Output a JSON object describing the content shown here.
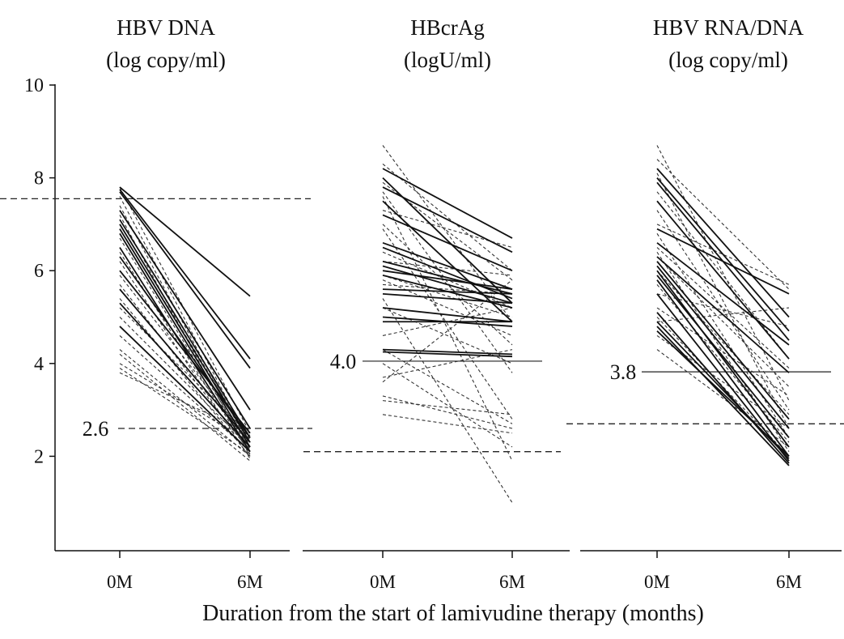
{
  "chart_data": {
    "type": "line",
    "xlabel": "Duration from the start of lamivudine therapy (months)",
    "ylim": [
      0,
      10
    ],
    "yticks": [
      2,
      4,
      6,
      8,
      10
    ],
    "categories": [
      "0M",
      "6M"
    ],
    "panels": [
      {
        "title_line1": "HBV DNA",
        "title_line2": "(log copy/ml)",
        "upper_dashed": 7.55,
        "annotation": {
          "label": "2.6",
          "value": 2.6,
          "style": "dashed"
        },
        "solid": [
          [
            7.8,
            5.45
          ],
          [
            7.75,
            4.1
          ],
          [
            7.7,
            3.9
          ],
          [
            7.3,
            3.0
          ],
          [
            7.1,
            2.6
          ],
          [
            7.0,
            2.4
          ],
          [
            6.9,
            2.3
          ],
          [
            6.8,
            2.2
          ],
          [
            6.5,
            2.1
          ],
          [
            6.3,
            2.4
          ],
          [
            6.0,
            2.5
          ],
          [
            5.6,
            2.3
          ],
          [
            5.3,
            2.2
          ],
          [
            4.8,
            2.1
          ]
        ],
        "dashed": [
          [
            7.8,
            2.5
          ],
          [
            7.6,
            2.3
          ],
          [
            7.4,
            2.2
          ],
          [
            7.2,
            2.0
          ],
          [
            6.9,
            2.35
          ],
          [
            6.7,
            2.15
          ],
          [
            6.4,
            2.05
          ],
          [
            6.2,
            1.95
          ],
          [
            5.9,
            2.3
          ],
          [
            5.7,
            2.1
          ],
          [
            5.4,
            2.0
          ],
          [
            5.2,
            2.45
          ],
          [
            5.0,
            2.2
          ],
          [
            4.6,
            2.1
          ],
          [
            4.3,
            2.0
          ],
          [
            4.2,
            1.9
          ],
          [
            4.0,
            2.3
          ],
          [
            3.8,
            2.5
          ],
          [
            3.9,
            2.05
          ]
        ]
      },
      {
        "title_line1": "HBcrAg",
        "title_line2": "(logU/ml)",
        "lower_dashed": 2.1,
        "annotation": {
          "label": "4.0",
          "value": 4.05,
          "style": "solid"
        },
        "solid": [
          [
            8.2,
            6.7
          ],
          [
            8.0,
            5.3
          ],
          [
            7.8,
            6.4
          ],
          [
            7.5,
            4.9
          ],
          [
            7.2,
            6.0
          ],
          [
            6.6,
            5.6
          ],
          [
            6.5,
            5.4
          ],
          [
            6.2,
            5.5
          ],
          [
            6.1,
            5.3
          ],
          [
            6.0,
            5.6
          ],
          [
            5.9,
            5.2
          ],
          [
            5.6,
            5.5
          ],
          [
            5.5,
            5.3
          ],
          [
            5.2,
            4.9
          ],
          [
            5.0,
            4.8
          ],
          [
            4.9,
            4.9
          ],
          [
            4.3,
            4.2
          ],
          [
            4.25,
            4.15
          ]
        ],
        "dashed": [
          [
            8.7,
            4.9
          ],
          [
            8.3,
            6.0
          ],
          [
            7.9,
            5.8
          ],
          [
            7.7,
            3.8
          ],
          [
            7.6,
            1.9
          ],
          [
            7.3,
            6.5
          ],
          [
            7.0,
            4.4
          ],
          [
            6.9,
            2.8
          ],
          [
            6.4,
            5.2
          ],
          [
            6.2,
            5.9
          ],
          [
            5.9,
            5.0
          ],
          [
            5.8,
            4.6
          ],
          [
            5.7,
            5.5
          ],
          [
            5.4,
            1.0
          ],
          [
            5.2,
            4.0
          ],
          [
            4.6,
            5.2
          ],
          [
            4.3,
            2.7
          ],
          [
            4.0,
            2.2
          ],
          [
            3.7,
            4.3
          ],
          [
            3.6,
            5.8
          ],
          [
            3.3,
            2.6
          ],
          [
            3.2,
            2.9
          ],
          [
            2.9,
            2.5
          ]
        ]
      },
      {
        "title_line1": "HBV RNA/DNA",
        "title_line2": "(log copy/ml)",
        "lower_dashed": 2.7,
        "annotation": {
          "label": "3.8",
          "value": 3.82,
          "style": "solid"
        },
        "solid": [
          [
            8.2,
            5.0
          ],
          [
            8.0,
            4.7
          ],
          [
            7.9,
            4.5
          ],
          [
            7.5,
            4.1
          ],
          [
            6.9,
            5.5
          ],
          [
            6.6,
            4.4
          ],
          [
            6.3,
            3.8
          ],
          [
            6.2,
            2.8
          ],
          [
            6.1,
            2.6
          ],
          [
            6.0,
            2.2
          ],
          [
            5.9,
            2.4
          ],
          [
            5.8,
            2.0
          ],
          [
            5.5,
            1.9
          ],
          [
            5.1,
            1.85
          ],
          [
            4.9,
            1.95
          ],
          [
            4.8,
            1.8
          ],
          [
            4.7,
            2.0
          ]
        ],
        "dashed": [
          [
            8.7,
            3.2
          ],
          [
            8.4,
            5.6
          ],
          [
            8.1,
            2.6
          ],
          [
            7.7,
            4.1
          ],
          [
            7.3,
            3.0
          ],
          [
            7.0,
            5.7
          ],
          [
            6.8,
            2.4
          ],
          [
            6.5,
            3.9
          ],
          [
            6.4,
            2.1
          ],
          [
            6.3,
            3.5
          ],
          [
            6.0,
            2.9
          ],
          [
            5.7,
            2.3
          ],
          [
            5.5,
            4.8
          ],
          [
            5.2,
            3.3
          ],
          [
            5.0,
            2.0
          ],
          [
            4.9,
            5.2
          ],
          [
            4.6,
            2.6
          ],
          [
            4.3,
            2.2
          ]
        ]
      }
    ]
  }
}
